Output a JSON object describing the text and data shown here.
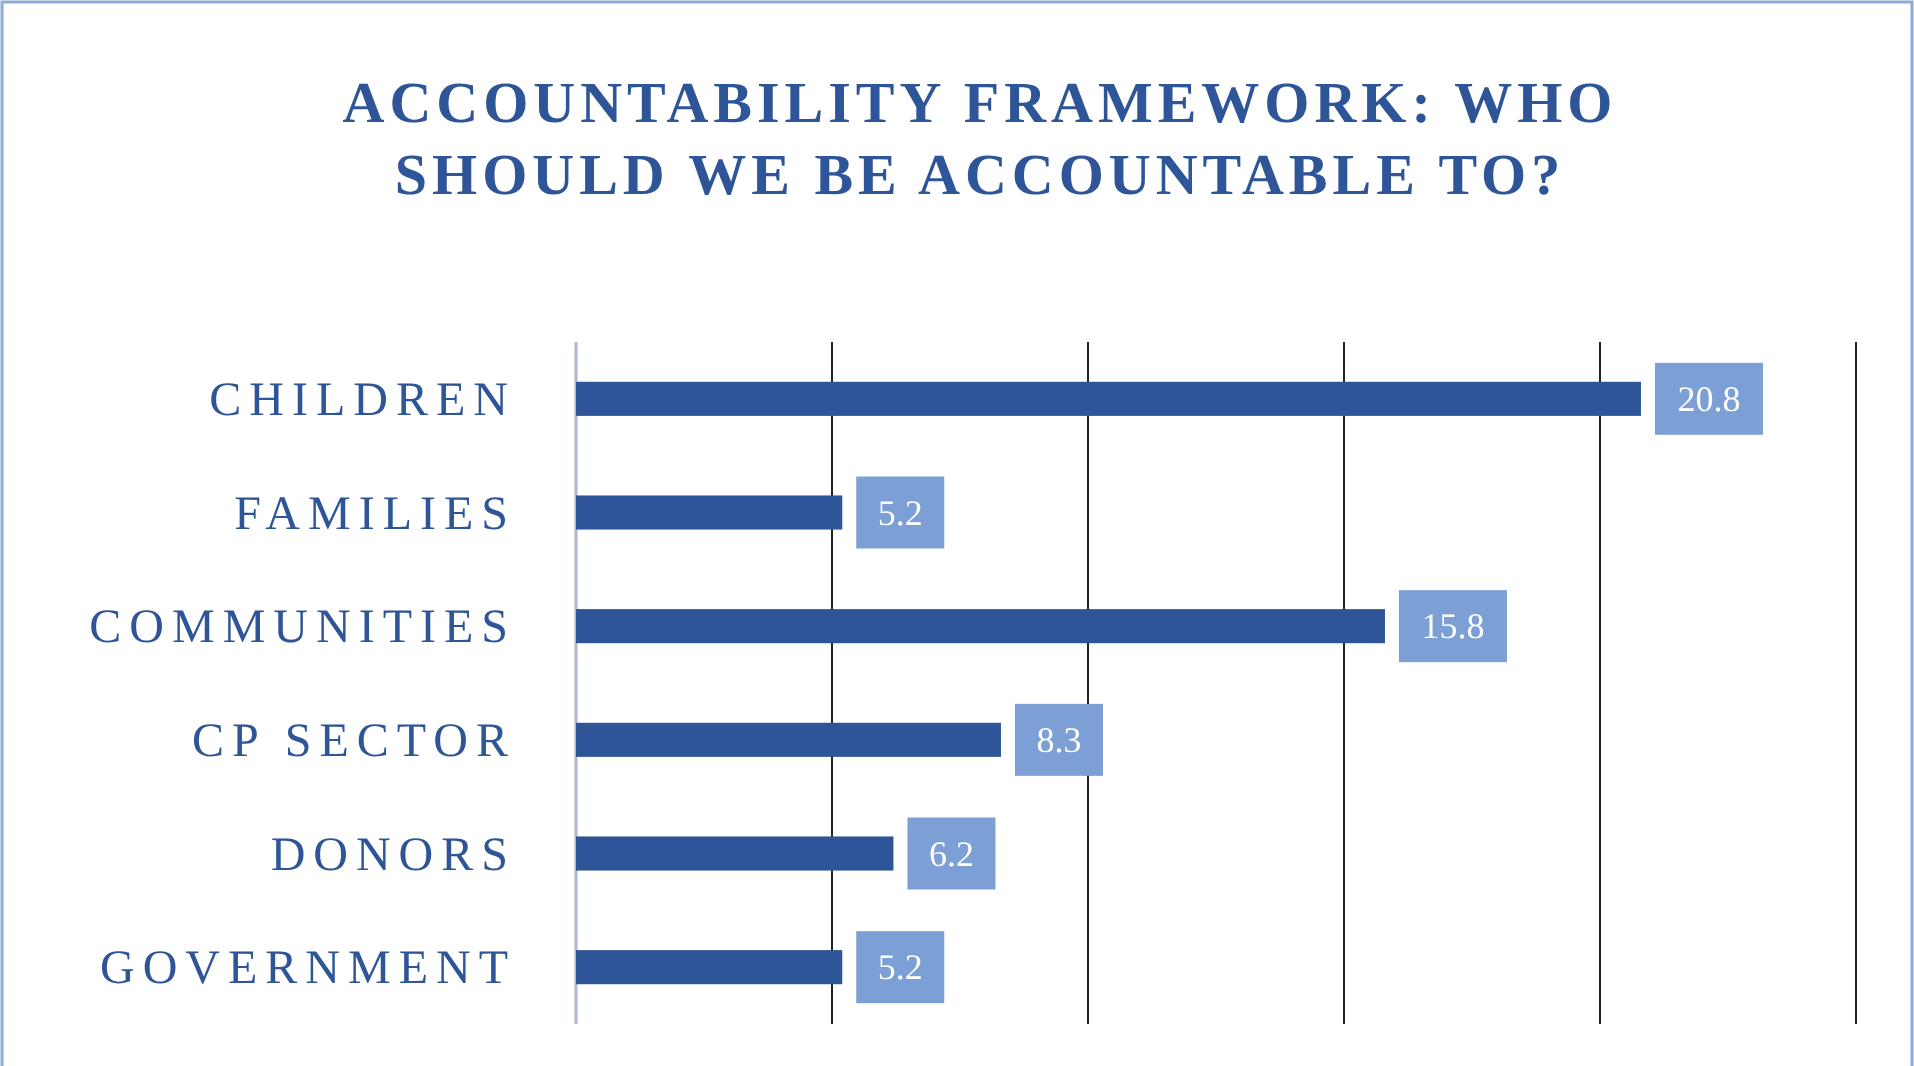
{
  "chart_data": {
    "type": "bar",
    "orientation": "horizontal",
    "title": "ACCOUNTABILITY FRAMEWORK: WHO SHOULD WE BE ACCOUNTABLE TO?",
    "categories": [
      "CHILDREN",
      "FAMILIES",
      "COMMUNITIES",
      "CP SECTOR",
      "DONORS",
      "GOVERNMENT"
    ],
    "values": [
      20.8,
      5.2,
      15.8,
      8.3,
      6.2,
      5.2
    ],
    "color": "#2e5597",
    "xlim": [
      0,
      25
    ],
    "xticks": [
      {
        "value": 0,
        "label": null
      },
      {
        "value": 5,
        "label": null
      },
      {
        "value": 10,
        "label": null
      },
      {
        "value": 15,
        "label": null
      },
      {
        "value": 20,
        "label": null
      },
      {
        "value": 25,
        "label": null
      }
    ],
    "grid": "x",
    "tick_labels": "y",
    "data_labels": true
  }
}
